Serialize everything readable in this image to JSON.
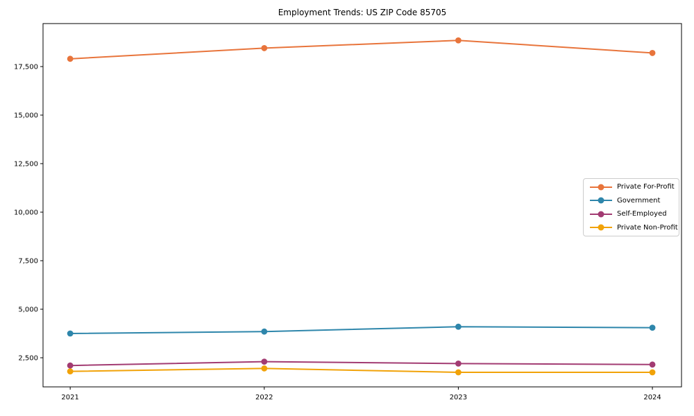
{
  "title": "Employment Trends: US ZIP Code 85705",
  "chart_data": {
    "type": "line",
    "title": "Employment Trends: US ZIP Code 85705",
    "xlabel": "",
    "ylabel": "",
    "grid": false,
    "legend_position": "center right",
    "x": [
      2021,
      2022,
      2023,
      2024
    ],
    "x_tick_labels": [
      "2021",
      "2022",
      "2023",
      "2024"
    ],
    "xlim": [
      2020.86,
      2024.15
    ],
    "ylim": [
      1000,
      19715
    ],
    "yticks": [
      2500,
      5000,
      7500,
      10000,
      12500,
      15000,
      17500
    ],
    "ytick_labels": [
      "2,500",
      "5,000",
      "7,500",
      "10,000",
      "12,500",
      "15,000",
      "17,500"
    ],
    "series": [
      {
        "name": "Private For-Profit",
        "color": "#E8743B",
        "values": [
          17900,
          18450,
          18850,
          18200
        ]
      },
      {
        "name": "Government",
        "color": "#2E86AB",
        "values": [
          3750,
          3850,
          4100,
          4050
        ]
      },
      {
        "name": "Self-Employed",
        "color": "#A23B72",
        "values": [
          2100,
          2300,
          2200,
          2150
        ]
      },
      {
        "name": "Private Non-Profit",
        "color": "#F1A208",
        "values": [
          1800,
          1950,
          1750,
          1750
        ]
      }
    ]
  },
  "colors": {
    "axis": "#000000",
    "text": "#000000",
    "legend_border": "#cccccc",
    "background": "#ffffff"
  }
}
